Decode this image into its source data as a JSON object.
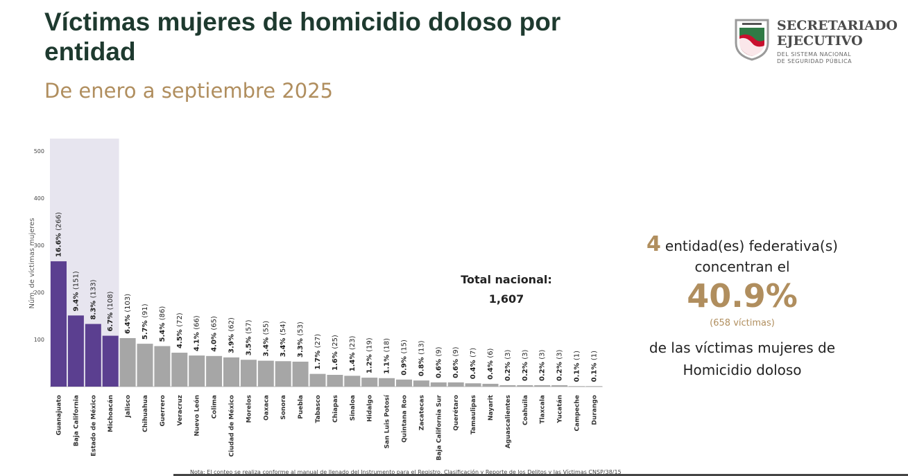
{
  "header": {
    "title": "Víctimas mujeres de homicidio doloso por entidad",
    "subtitle": "De enero a septiembre 2025"
  },
  "logo": {
    "title_line1": "SECRETARIADO",
    "title_line2": "EJECUTIVO",
    "sub_line1": "DEL SISTEMA NACIONAL",
    "sub_line2": "DE SEGURIDAD PÚBLICA"
  },
  "total": {
    "label": "Total nacional:",
    "value": "1,607"
  },
  "summary": {
    "count": "4",
    "line1": "entidad(es)  federativa(s)",
    "line2": "concentran el",
    "percent": "40.9%",
    "victims": "(658 víctimas)",
    "line3": "de las  víctimas  mujeres de",
    "line4": "Homicidio doloso"
  },
  "footer": {
    "note": "Nota: El conteo se realiza conforme al manual de llenado del Instrumento para el Registro, Clasificación y Reporte de los Delitos y las Víctimas CNSP/38/15"
  },
  "colors": {
    "highlight": "#5b3f90",
    "rest": "#a6a6a6",
    "band": "#e7e5ef",
    "gold": "#b08e5e"
  },
  "chart_data": {
    "type": "bar",
    "title": "Víctimas mujeres de homicidio doloso por entidad",
    "xlabel": "",
    "ylabel": "Núm. de víctimas mujeres",
    "ylim": [
      0,
      500
    ],
    "yticks": [
      100,
      200,
      300,
      400,
      500
    ],
    "highlight_count": 4,
    "categories": [
      "Guanajuato",
      "Baja California",
      "Estado de México",
      "Michoacán",
      "Jalisco",
      "Chihuahua",
      "Guerrero",
      "Veracruz",
      "Nuevo León",
      "Colima",
      "Ciudad de México",
      "Morelos",
      "Oaxaca",
      "Sonora",
      "Puebla",
      "Tabasco",
      "Chiapas",
      "Sinaloa",
      "Hidalgo",
      "San Luis Potosí",
      "Quintana Roo",
      "Zacatecas",
      "Baja California Sur",
      "Querétaro",
      "Tamaulipas",
      "Nayarit",
      "Aguascalientes",
      "Coahuila",
      "Tlaxcala",
      "Yucatán",
      "Campeche",
      "Durango"
    ],
    "values": [
      266,
      151,
      133,
      108,
      103,
      91,
      86,
      72,
      66,
      65,
      62,
      57,
      55,
      54,
      53,
      27,
      25,
      23,
      19,
      18,
      15,
      13,
      9,
      9,
      7,
      6,
      3,
      3,
      3,
      3,
      1,
      1
    ],
    "percents": [
      "16.6%",
      "9.4%",
      "8.3%",
      "6.7%",
      "6.4%",
      "5.7%",
      "5.4%",
      "4.5%",
      "4.1%",
      "4.0%",
      "3.9%",
      "3.5%",
      "3.4%",
      "3.4%",
      "3.3%",
      "1.7%",
      "1.6%",
      "1.4%",
      "1.2%",
      "1.1%",
      "0.9%",
      "0.8%",
      "0.6%",
      "0.6%",
      "0.4%",
      "0.4%",
      "0.2%",
      "0.2%",
      "0.2%",
      "0.2%",
      "0.1%",
      "0.1%"
    ]
  }
}
